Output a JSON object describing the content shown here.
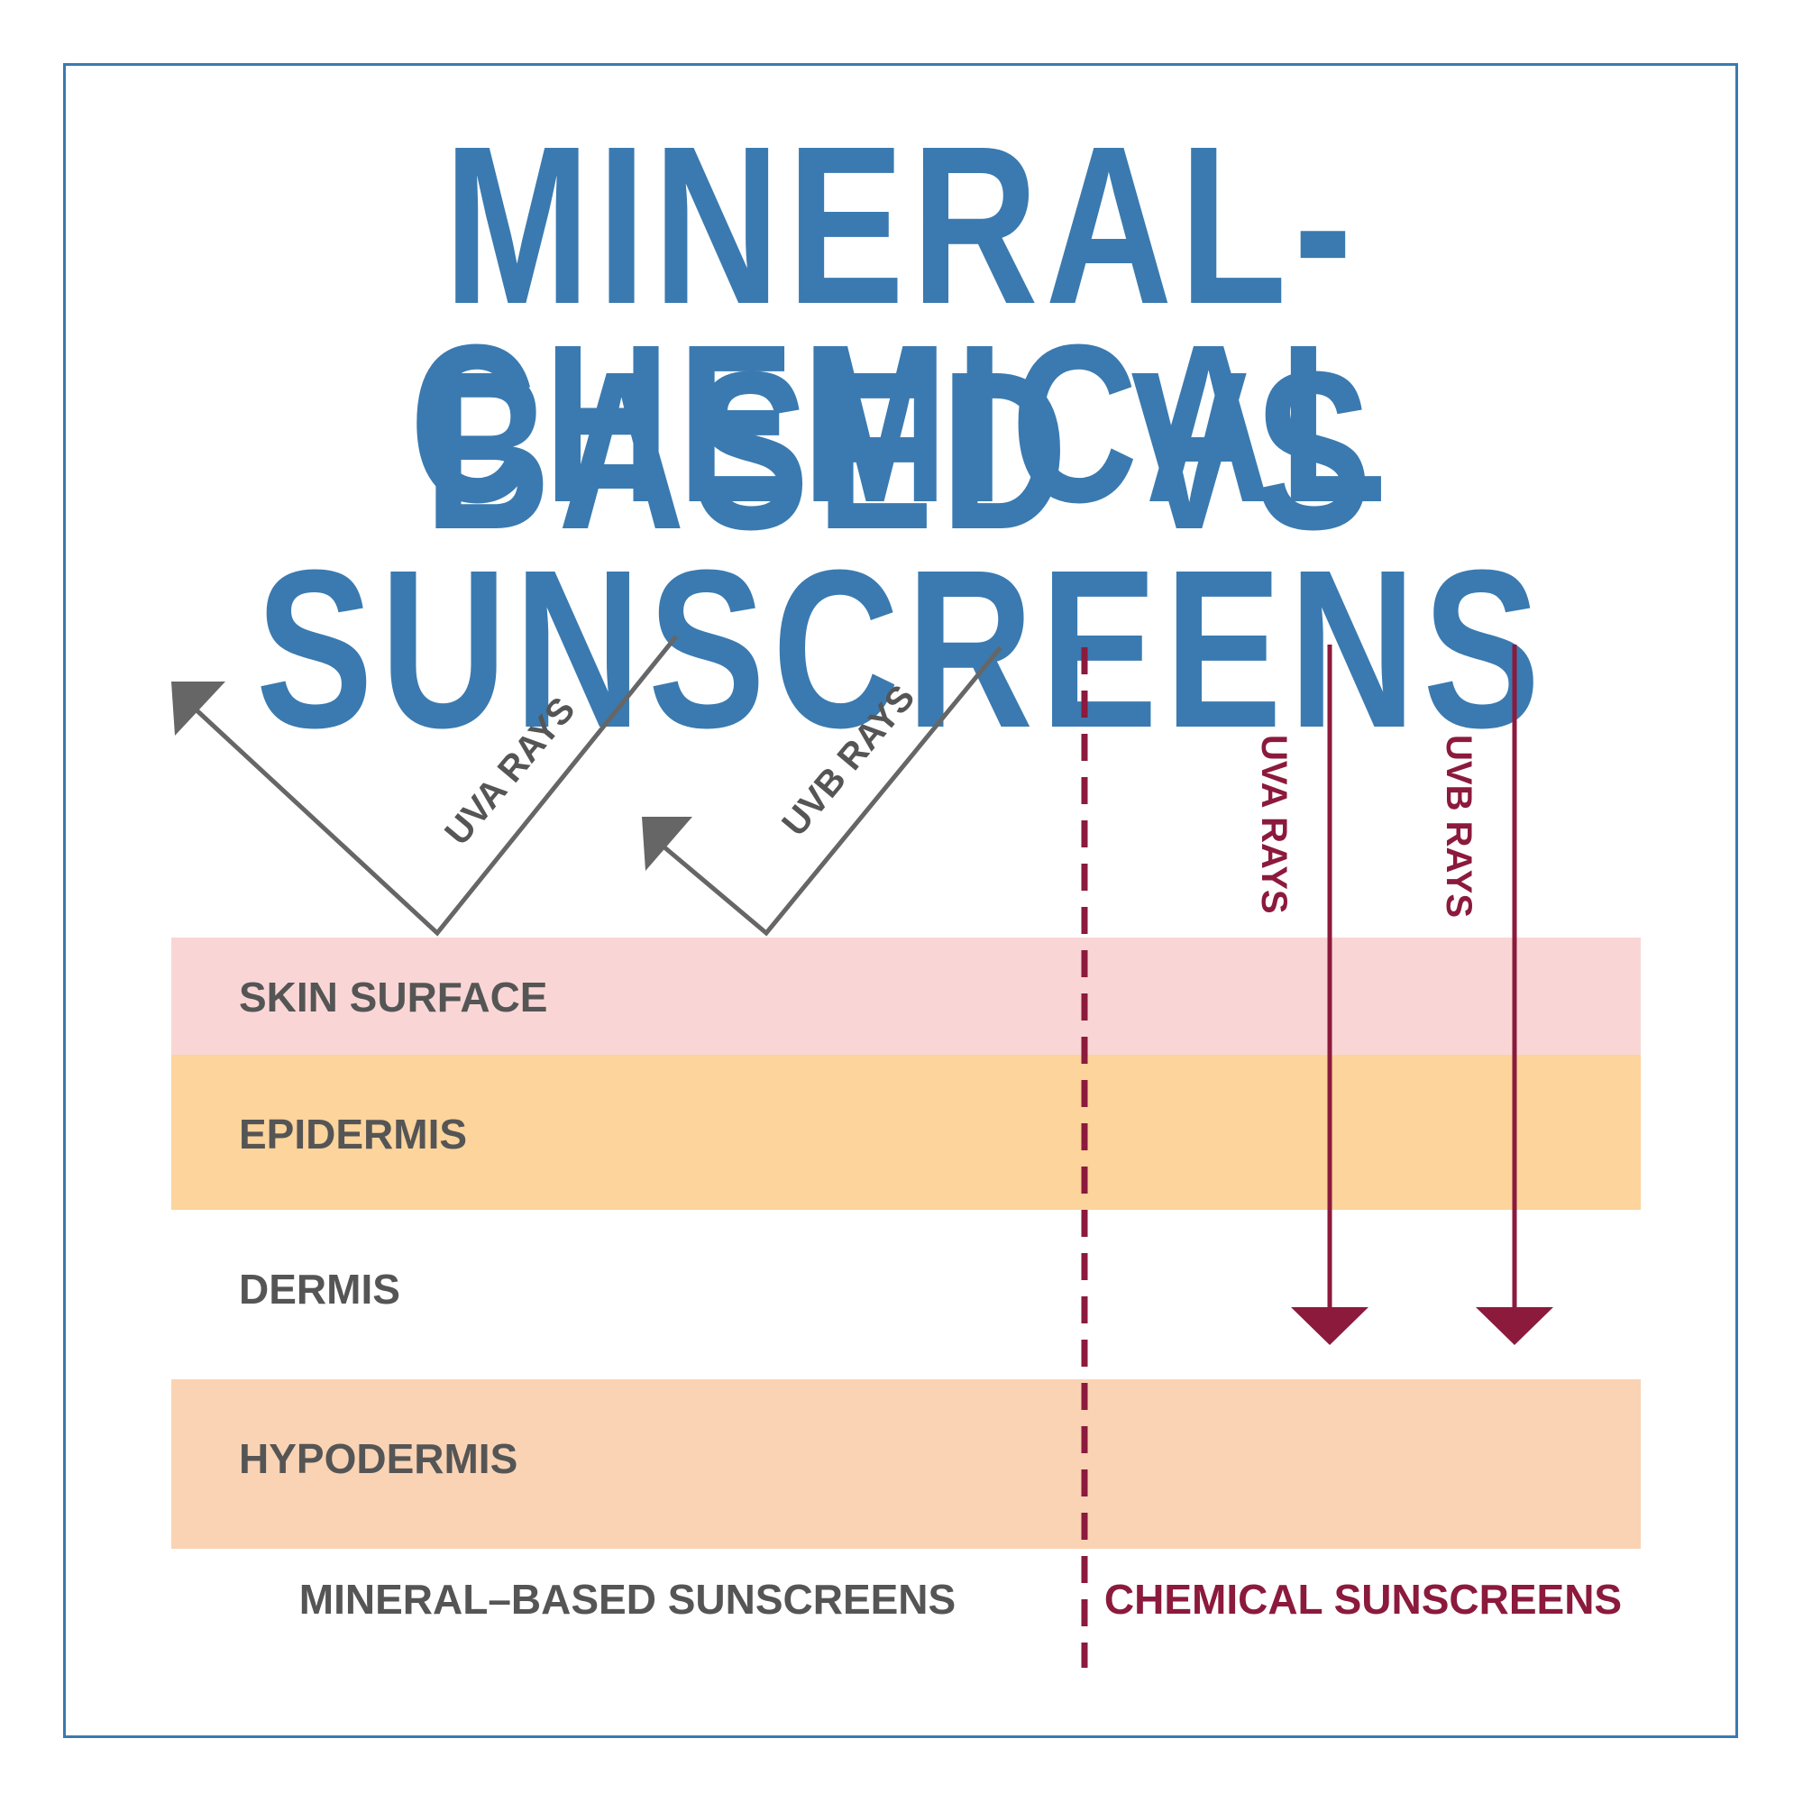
{
  "title": {
    "line1": "MINERAL-BASED VS",
    "line2": "CHEMICAL SUNSCREENS"
  },
  "layers": [
    {
      "label": "SKIN SURFACE",
      "color": "#f9d6d5"
    },
    {
      "label": "EPIDERMIS",
      "color": "#fcd49c"
    },
    {
      "label": "DERMIS",
      "color": "#ffffff"
    },
    {
      "label": "HYPODERMIS",
      "color": "#f9d3b4"
    }
  ],
  "mineral": {
    "uva_label": "UVA RAYS",
    "uvb_label": "UVB RAYS",
    "caption": "MINERAL–BASED SUNSCREENS",
    "color": "#555555"
  },
  "chemical": {
    "uva_label": "UVA RAYS",
    "uvb_label": "UVB RAYS",
    "caption": "CHEMICAL SUNSCREENS",
    "color": "#8b1a3c"
  },
  "colors": {
    "title": "#3a7ab0",
    "frame": "#3a7ab0",
    "divider": "#8b1a3c"
  }
}
